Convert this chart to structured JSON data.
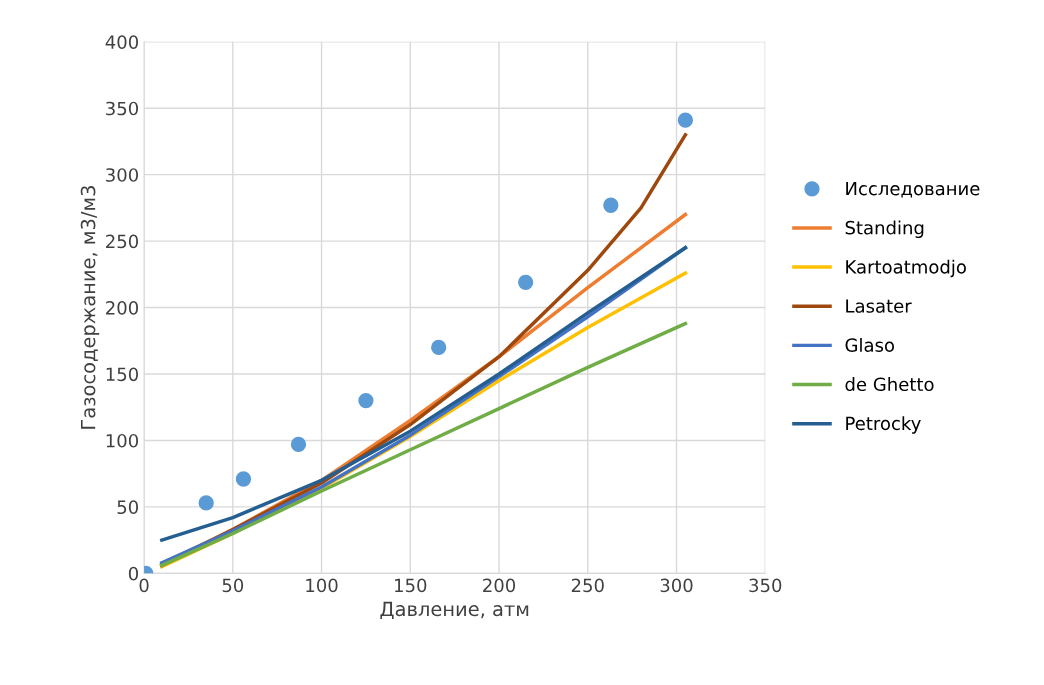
{
  "chart_data": {
    "type": "line",
    "xlabel": "Давление, атм",
    "ylabel": "Газосодержание, м3/м3",
    "xlim": [
      0,
      350
    ],
    "xticks": [
      0,
      50,
      100,
      150,
      200,
      250,
      300,
      350
    ],
    "ylim": [
      0,
      400
    ],
    "yticks": [
      0,
      50,
      100,
      150,
      200,
      250,
      300,
      350,
      400
    ],
    "grid": true,
    "legend": "right",
    "line_style": "solid",
    "series": [
      {
        "name": "Исследование",
        "type": "scatter",
        "marker": "circle",
        "color": "#5b9bd5",
        "x": [
          1,
          35,
          56,
          87,
          125,
          166,
          215,
          263,
          305
        ],
        "values": [
          0,
          53,
          71,
          97,
          130,
          170,
          219,
          277,
          341
        ]
      },
      {
        "name": "Standing",
        "color": "#ed7d31",
        "x": [
          10,
          50,
          100,
          150,
          200,
          250,
          305
        ],
        "values": [
          7,
          33,
          70,
          115,
          163,
          215,
          270
        ]
      },
      {
        "name": "Kartoatmodjo",
        "color": "#ffc000",
        "x": [
          10,
          50,
          100,
          150,
          200,
          250,
          305
        ],
        "values": [
          5,
          30,
          64,
          103,
          145,
          185,
          226
        ]
      },
      {
        "name": "Lasater",
        "color": "#9e480e",
        "x": [
          10,
          50,
          100,
          150,
          200,
          250,
          280,
          305
        ],
        "values": [
          6,
          33,
          68,
          112,
          163,
          228,
          275,
          330
        ]
      },
      {
        "name": "Glaso",
        "color": "#4472c4",
        "x": [
          10,
          50,
          100,
          150,
          200,
          250,
          305
        ],
        "values": [
          8,
          32,
          65,
          104,
          148,
          193,
          245
        ]
      },
      {
        "name": "de Ghetto",
        "color": "#70ad47",
        "x": [
          10,
          50,
          100,
          150,
          200,
          250,
          305
        ],
        "values": [
          6,
          30,
          62,
          93,
          124,
          155,
          188
        ]
      },
      {
        "name": "Petrocky",
        "color": "#255e91",
        "x": [
          10,
          50,
          100,
          150,
          200,
          250,
          305
        ],
        "values": [
          25,
          42,
          70,
          107,
          150,
          196,
          245
        ]
      }
    ]
  }
}
